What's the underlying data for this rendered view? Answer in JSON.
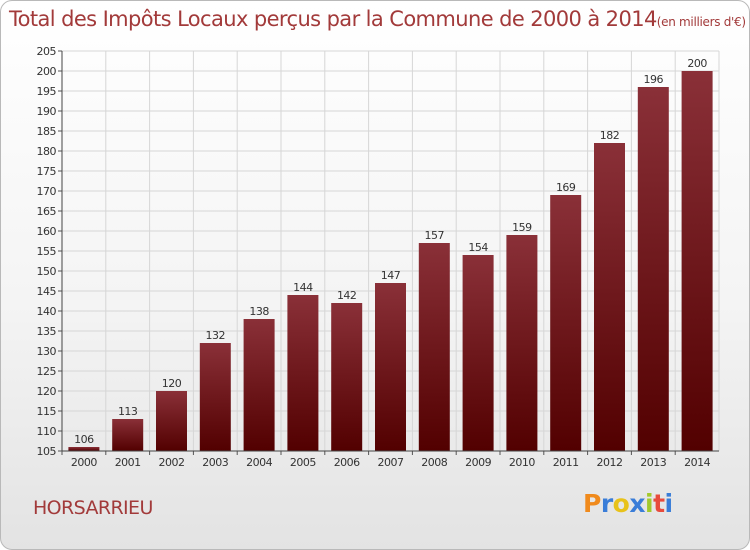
{
  "title": "Total des Impôts Locaux perçus par la Commune de 2000 à 2014",
  "subtitle": "(en milliers d'€)",
  "commune": "HORSARRIEU",
  "logo": {
    "letters": [
      "P",
      "r",
      "o",
      "x",
      "i",
      "t",
      "i"
    ],
    "colors": [
      "#f08a1c",
      "#3a7dd8",
      "#e8c21a",
      "#3a7dd8",
      "#a3c92c",
      "#e84b3c",
      "#3a7dd8"
    ]
  },
  "colors": {
    "bar_top": "#8a3038",
    "bar_bottom": "#520000",
    "title": "#a23a3a",
    "grid": "#d6d6d6"
  },
  "chart_data": {
    "type": "bar",
    "categories": [
      "2000",
      "2001",
      "2002",
      "2003",
      "2004",
      "2005",
      "2006",
      "2007",
      "2008",
      "2009",
      "2010",
      "2011",
      "2012",
      "2013",
      "2014"
    ],
    "values": [
      106,
      113,
      120,
      132,
      138,
      144,
      142,
      147,
      157,
      154,
      159,
      169,
      182,
      196,
      200
    ],
    "ylim": [
      105,
      205
    ],
    "yticks": [
      105,
      110,
      115,
      120,
      125,
      130,
      135,
      140,
      145,
      150,
      155,
      160,
      165,
      170,
      175,
      180,
      185,
      190,
      195,
      200,
      205
    ],
    "grid": true,
    "data_labels": true
  }
}
